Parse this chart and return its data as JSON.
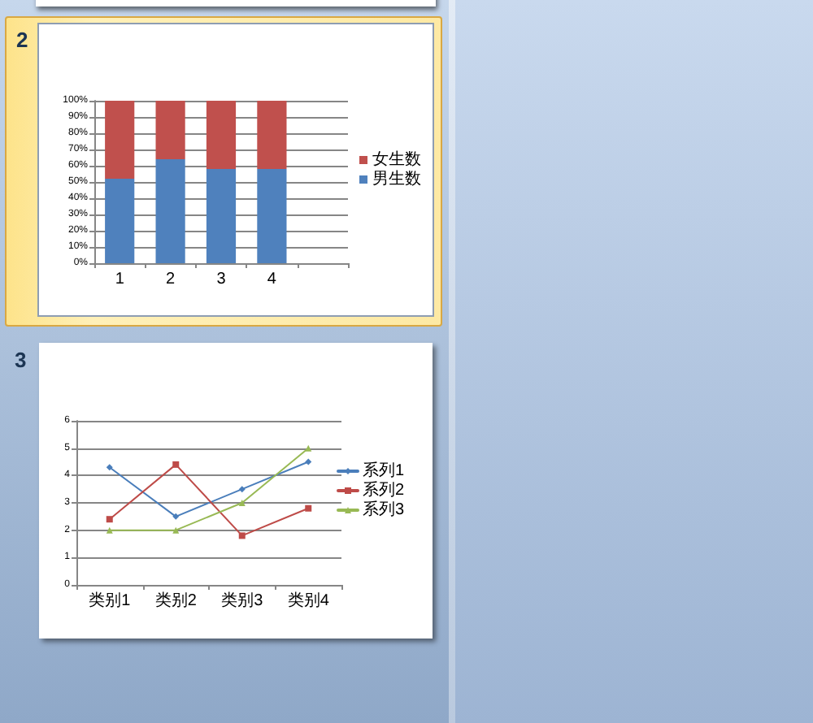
{
  "chart_data": [
    {
      "type": "bar",
      "categories": [
        "1",
        "2",
        "3",
        "4",
        null
      ],
      "series": [
        {
          "name": "男生数",
          "color": "#4f81bd",
          "values": [
            52,
            64,
            58,
            58,
            null
          ]
        },
        {
          "name": "女生数",
          "color": "#c0504d",
          "values": [
            48,
            36,
            42,
            42,
            null
          ]
        }
      ],
      "stacked": true,
      "ylim": [
        0,
        100
      ],
      "yticks": [
        {
          "value": 0,
          "label": "0%"
        },
        {
          "value": 10,
          "label": "10%"
        },
        {
          "value": 20,
          "label": "20%"
        },
        {
          "value": 30,
          "label": "30%"
        },
        {
          "value": 40,
          "label": "40%"
        },
        {
          "value": 50,
          "label": "50%"
        },
        {
          "value": 60,
          "label": "60%"
        },
        {
          "value": 70,
          "label": "70%"
        },
        {
          "value": 80,
          "label": "80%"
        },
        {
          "value": 90,
          "label": "90%"
        },
        {
          "value": 100,
          "label": "100%"
        }
      ],
      "grid": "y",
      "legend": "right",
      "annotations": [
        "2"
      ]
    },
    {
      "type": "line",
      "categories": [
        "类别1",
        "类别2",
        "类别3",
        "类别4"
      ],
      "series": [
        {
          "name": "系列1",
          "color": "#4a7ebb",
          "values": [
            4.3,
            2.5,
            3.5,
            4.5
          ],
          "marker": "diamond"
        },
        {
          "name": "系列2",
          "color": "#be4b48",
          "values": [
            2.4,
            4.4,
            1.8,
            2.8
          ],
          "marker": "square"
        },
        {
          "name": "系列3",
          "color": "#98b954",
          "values": [
            2,
            2,
            3,
            5
          ],
          "marker": "triangle"
        }
      ],
      "ylim": [
        0,
        6
      ],
      "yticks": [
        0,
        1,
        2,
        3,
        4,
        5,
        6
      ],
      "grid": "y",
      "legend": "right",
      "annotations": [
        "3"
      ]
    }
  ]
}
